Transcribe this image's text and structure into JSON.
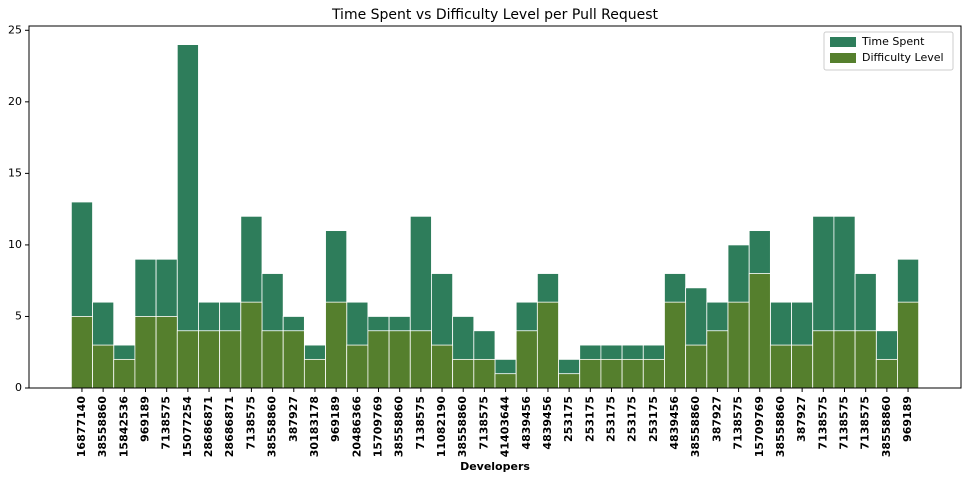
{
  "chart_data": {
    "type": "bar",
    "title": "Time Spent vs Difficulty Level per Pull Request",
    "x_label": "Developers",
    "categories": [
      "16877140",
      "38558860",
      "15842536",
      "969189",
      "7138575",
      "15077254",
      "28686871",
      "28686871",
      "7138575",
      "38558860",
      "387927",
      "30183178",
      "969189",
      "20486366",
      "15709769",
      "38558860",
      "7138575",
      "11082190",
      "38558860",
      "7138575",
      "41403644",
      "4839456",
      "4839456",
      "253175",
      "253175",
      "253175",
      "253175",
      "253175",
      "4839456",
      "38558860",
      "387927",
      "7138575",
      "15709769",
      "38558860",
      "387927",
      "7138575",
      "7138575",
      "7138575",
      "38558860",
      "969189"
    ],
    "series": [
      {
        "name": "Time Spent",
        "color": "#2e7d5b",
        "values": [
          13,
          6,
          3,
          9,
          9,
          24,
          6,
          6,
          12,
          8,
          5,
          3,
          11,
          6,
          5,
          5,
          12,
          8,
          5,
          4,
          2,
          6,
          8,
          2,
          3,
          3,
          3,
          3,
          8,
          7,
          6,
          10,
          11,
          6,
          6,
          12,
          12,
          8,
          4,
          9
        ]
      },
      {
        "name": "Difficulty Level",
        "color": "#557f2d",
        "values": [
          5,
          3,
          2,
          5,
          5,
          4,
          4,
          4,
          6,
          4,
          4,
          2,
          6,
          3,
          4,
          4,
          4,
          3,
          2,
          2,
          1,
          4,
          6,
          1,
          2,
          2,
          2,
          2,
          6,
          3,
          4,
          6,
          8,
          3,
          3,
          4,
          4,
          4,
          2,
          6
        ]
      }
    ],
    "ylim": [
      0,
      25.3
    ],
    "yticks": [
      0,
      5,
      10,
      15,
      20,
      25
    ],
    "legend": "upper right"
  }
}
